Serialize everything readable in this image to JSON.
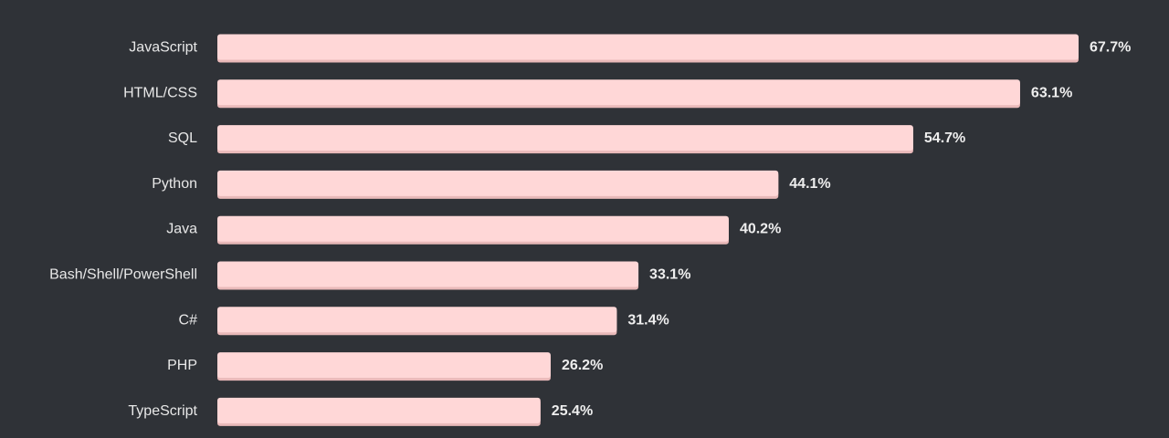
{
  "chart_data": {
    "type": "bar",
    "orientation": "horizontal",
    "categories": [
      "JavaScript",
      "HTML/CSS",
      "SQL",
      "Python",
      "Java",
      "Bash/Shell/PowerShell",
      "C#",
      "PHP",
      "TypeScript"
    ],
    "values": [
      67.7,
      63.1,
      54.7,
      44.1,
      40.2,
      33.1,
      31.4,
      26.2,
      25.4
    ],
    "value_labels": [
      "67.7%",
      "63.1%",
      "54.7%",
      "44.1%",
      "40.2%",
      "33.1%",
      "31.4%",
      "26.2%",
      "25.4%"
    ],
    "unit": "%",
    "title": "",
    "xlabel": "",
    "ylabel": "",
    "xlim": [
      0,
      67.7
    ],
    "grid": false,
    "legend": "none"
  },
  "colors": {
    "background": "#2f3237",
    "bar": "#ffd7d7",
    "bar_shadow": "#e9b9b9",
    "category_text": "#e8e8e8",
    "value_text": "#eeeeee"
  }
}
